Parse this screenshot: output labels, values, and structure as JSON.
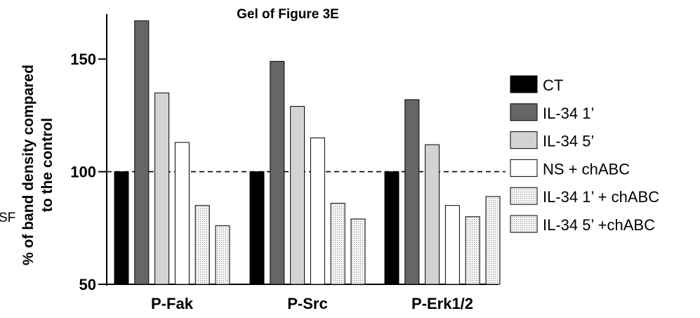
{
  "chart_data": {
    "type": "bar",
    "title": "Gel of Figure 3E",
    "ylabel_line1": "% of band density compared",
    "ylabel_line2": "to  the control",
    "xlabel": "",
    "categories": [
      "P-Fak",
      "P-Src",
      "P-Erk1/2"
    ],
    "ylim": [
      50,
      170
    ],
    "yticks": [
      50,
      100,
      150
    ],
    "reference_line": 100,
    "series": [
      {
        "name": "CT",
        "values": [
          100,
          100,
          100
        ],
        "fill": "#000000",
        "pattern": "solid"
      },
      {
        "name": "IL-34 1’",
        "values": [
          167,
          149,
          132
        ],
        "fill": "#666666",
        "pattern": "solid"
      },
      {
        "name": "IL-34 5’",
        "values": [
          135,
          129,
          112
        ],
        "fill": "#d3d3d3",
        "pattern": "solid"
      },
      {
        "name": "NS + chABC",
        "values": [
          113,
          115,
          85
        ],
        "fill": "#ffffff",
        "pattern": "solid"
      },
      {
        "name": "IL-34 1’ + chABC",
        "values": [
          85,
          86,
          80
        ],
        "fill": "#eeeeee",
        "pattern": "dots"
      },
      {
        "name": "IL-34 5’ +chABC",
        "values": [
          76,
          79,
          89
        ],
        "fill": "#eeeeee",
        "pattern": "dots"
      }
    ],
    "legend_position": "right",
    "grid": false
  },
  "stray_text": "SF"
}
